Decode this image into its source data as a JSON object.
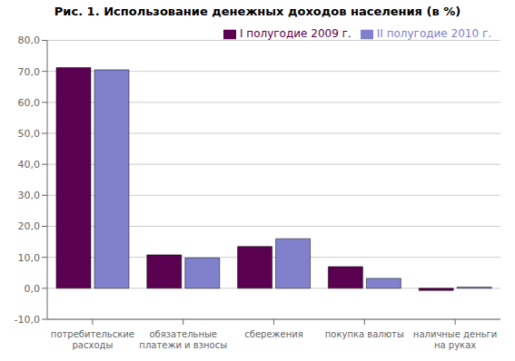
{
  "chart_data": {
    "type": "bar",
    "title": "Рис. 1. Использование денежных доходов населения (в %)",
    "categories": [
      "потребительские\nрасходы",
      "обязательные\nплатежи и взносы",
      "сбережения",
      "покупка валюты",
      "наличные деньги\nна руках"
    ],
    "series": [
      {
        "name": "I полугодие 2009 г.",
        "color": "#5B0050",
        "values": [
          71.2,
          10.8,
          13.5,
          7.0,
          -0.7
        ]
      },
      {
        "name": "II полугодие 2010 г.",
        "color": "#8080CC",
        "values": [
          70.5,
          9.8,
          16.0,
          3.2,
          0.4
        ]
      }
    ],
    "ylim": [
      -10.0,
      80.0
    ],
    "yticks": [
      {
        "value": -10.0,
        "label": "-10,0"
      },
      {
        "value": 0.0,
        "label": "0,0"
      },
      {
        "value": 10.0,
        "label": "10,0"
      },
      {
        "value": 20.0,
        "label": "20,0"
      },
      {
        "value": 30.0,
        "label": "30,0"
      },
      {
        "value": 40.0,
        "label": "40,0"
      },
      {
        "value": 50.0,
        "label": "50,0"
      },
      {
        "value": 60.0,
        "label": "60,0"
      },
      {
        "value": 70.0,
        "label": "70,0"
      },
      {
        "value": 80.0,
        "label": "80,0"
      }
    ],
    "grid": true,
    "legend": "upper right"
  }
}
